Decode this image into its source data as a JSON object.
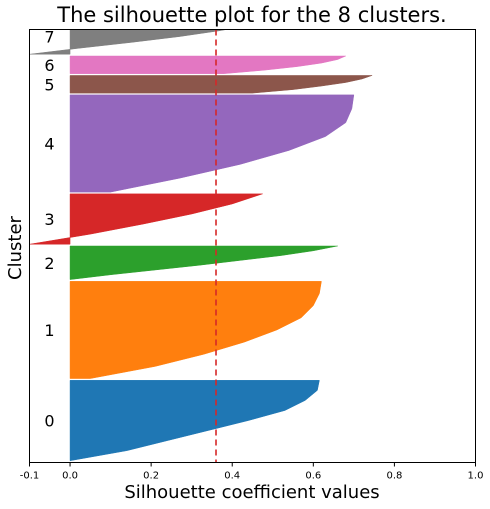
{
  "chart_data": {
    "type": "area",
    "title": "The silhouette plot for the 8 clusters.",
    "xlabel": "Silhouette coefficient values",
    "ylabel": "Cluster",
    "xlim": [
      -0.1,
      1.0
    ],
    "x_ticks": [
      "-0.1",
      "0.0",
      "0.2",
      "0.4",
      "0.6",
      "0.8",
      "1.0"
    ],
    "x_tick_values": [
      -0.1,
      0.0,
      0.2,
      0.4,
      0.6,
      0.8,
      1.0
    ],
    "average_silhouette": 0.36,
    "y_ticks_shown": false,
    "grid": false,
    "clusters": [
      {
        "label": "0",
        "color": "#1f77b4",
        "start": 10,
        "end": 465,
        "max": 0.615,
        "min": -0.1,
        "neg_frac": 0.05,
        "profile": [
          0.615,
          0.61,
          0.58,
          0.53,
          0.44,
          0.34,
          0.24,
          0.14,
          0.0
        ]
      },
      {
        "label": "1",
        "color": "#ff7f0e",
        "start": 475,
        "end": 1025,
        "max": 0.62,
        "min": -0.095,
        "neg_frac": 0.05,
        "profile": [
          0.62,
          0.615,
          0.6,
          0.57,
          0.51,
          0.43,
          0.33,
          0.21,
          0.05
        ]
      },
      {
        "label": "2",
        "color": "#2ca02c",
        "start": 1035,
        "end": 1225,
        "max": 0.66,
        "min": -0.1,
        "neg_frac": 0.04,
        "profile": [
          0.66,
          0.6,
          0.52,
          0.42,
          0.32,
          0.21,
          0.1,
          0.0
        ]
      },
      {
        "label": "3",
        "color": "#d62728",
        "start": 1235,
        "end": 1520,
        "max": 0.475,
        "min": -0.1,
        "neg_frac": 0.48,
        "profile": [
          0.475,
          0.4,
          0.3,
          0.18,
          0.05,
          -0.1
        ]
      },
      {
        "label": "4",
        "color": "#9467bd",
        "start": 1530,
        "end": 2080,
        "max": 0.7,
        "min": 0.0,
        "neg_frac": 0.0,
        "profile": [
          0.7,
          0.695,
          0.68,
          0.63,
          0.54,
          0.42,
          0.27,
          0.1
        ]
      },
      {
        "label": "5",
        "color": "#8c564b",
        "start": 2090,
        "end": 2190,
        "max": 0.745,
        "min": 0.0,
        "neg_frac": 0.0,
        "profile": [
          0.745,
          0.72,
          0.68,
          0.62,
          0.55,
          0.45
        ]
      },
      {
        "label": "6",
        "color": "#e377c2",
        "start": 2200,
        "end": 2300,
        "max": 0.68,
        "min": 0.0,
        "neg_frac": 0.0,
        "profile": [
          0.68,
          0.66,
          0.62,
          0.56,
          0.48,
          0.38
        ]
      },
      {
        "label": "7",
        "color": "#7f7f7f",
        "start": 2310,
        "end": 2510,
        "max": 0.5,
        "min": -0.1,
        "neg_frac": 0.12,
        "profile": [
          0.5,
          0.45,
          0.37,
          0.27,
          0.15,
          0.02,
          -0.1
        ]
      }
    ],
    "ylim": [
      0,
      2450
    ]
  }
}
